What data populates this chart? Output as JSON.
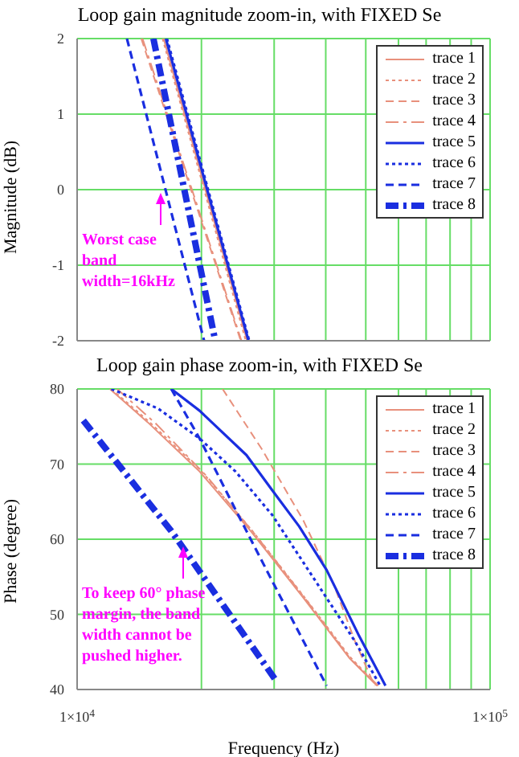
{
  "chart_data": [
    {
      "type": "line",
      "title": "Loop gain magnitude zoom-in, with FIXED Se",
      "ylabel": "Magnitude (dB)",
      "log": "x",
      "grid": true,
      "legend": "top right",
      "tick_labels": "y",
      "marker": "none",
      "xlim": [
        10000,
        100000
      ],
      "xticks": [
        {
          "value": 10000,
          "label": null
        },
        {
          "value": 20000,
          "label": null
        },
        {
          "value": 30000,
          "label": null
        },
        {
          "value": 40000,
          "label": null
        },
        {
          "value": 50000,
          "label": null
        },
        {
          "value": 60000,
          "label": null
        },
        {
          "value": 70000,
          "label": null
        },
        {
          "value": 80000,
          "label": null
        },
        {
          "value": 90000,
          "label": null
        },
        {
          "value": 100000,
          "label": null
        }
      ],
      "ylim": [
        -2,
        2
      ],
      "yticks": [
        -2,
        -1,
        0,
        1,
        2
      ],
      "annotations": [
        {
          "text": "Worst case band width=16kHz",
          "x": 16000,
          "y": 0
        }
      ],
      "series": [
        {
          "name": "trace 1",
          "color": "#e8907c",
          "line_style": "solid",
          "x": [
            16200,
            25800
          ],
          "values": [
            2,
            -2
          ]
        },
        {
          "name": "trace 2",
          "color": "#e8907c",
          "line_style": "dotted",
          "x": [
            16100,
            25600
          ],
          "values": [
            2,
            -2
          ]
        },
        {
          "name": "trace 3",
          "color": "#e8907c",
          "line_style": "dashed",
          "x": [
            14300,
            24900
          ],
          "values": [
            2,
            -2
          ]
        },
        {
          "name": "trace 4",
          "color": "#e8907c",
          "line_style": "dashdot",
          "x": [
            14400,
            25000
          ],
          "values": [
            2,
            -2
          ]
        },
        {
          "name": "trace 5",
          "color": "#1a2ee0",
          "line_style": "solid",
          "x": [
            16400,
            26000
          ],
          "values": [
            2,
            -2
          ]
        },
        {
          "name": "trace 6",
          "color": "#1a2ee0",
          "line_style": "dotted",
          "x": [
            16500,
            26100
          ],
          "values": [
            2,
            -2
          ]
        },
        {
          "name": "trace 7",
          "color": "#1a2ee0",
          "line_style": "dashed",
          "x": [
            13200,
            20300
          ],
          "values": [
            2,
            -2
          ]
        },
        {
          "name": "trace 8",
          "color": "#1a2ee0",
          "line_style": "dashdot",
          "x": [
            15300,
            21600
          ],
          "values": [
            2,
            -2
          ]
        }
      ]
    },
    {
      "type": "line",
      "title": "Loop gain phase zoom-in, with FIXED Se",
      "xlabel": "Frequency (Hz)",
      "ylabel": "Phase (degree)",
      "log": "x",
      "grid": true,
      "legend": "top right",
      "marker": "none",
      "xlim": [
        10000,
        100000
      ],
      "xticks": [
        {
          "value": 10000,
          "label": "1×10$^{4}$"
        },
        {
          "value": 20000,
          "label": null
        },
        {
          "value": 30000,
          "label": null
        },
        {
          "value": 40000,
          "label": null
        },
        {
          "value": 50000,
          "label": null
        },
        {
          "value": 60000,
          "label": null
        },
        {
          "value": 70000,
          "label": null
        },
        {
          "value": 80000,
          "label": null
        },
        {
          "value": 90000,
          "label": null
        },
        {
          "value": 100000,
          "label": "1×10$^{5}$"
        }
      ],
      "ylim": [
        40,
        80
      ],
      "yticks": [
        40,
        50,
        60,
        70,
        80
      ],
      "annotations": [
        {
          "text": "To keep 60° phase margin, the band width cannot be pushed higher.",
          "x": 18000,
          "y": 59.5
        }
      ],
      "series": [
        {
          "name": "trace 1",
          "color": "#e8907c",
          "line_style": "solid",
          "x": [
            12000,
            14800,
            19800,
            26400,
            35300,
            45600,
            53200
          ],
          "values": [
            80,
            75.6,
            69,
            61,
            52.2,
            44.2,
            40.5
          ]
        },
        {
          "name": "trace 2",
          "color": "#e8907c",
          "line_style": "dotted",
          "x": [
            12100,
            14900,
            19900,
            26500,
            35400,
            45700,
            53400
          ],
          "values": [
            80,
            75.7,
            69.2,
            61.2,
            52.4,
            44.4,
            40.5
          ]
        },
        {
          "name": "trace 3",
          "color": "#e8907c",
          "line_style": "dashed",
          "x": [
            22500,
            28000,
            35300,
            42000,
            47100,
            52500
          ],
          "values": [
            80,
            72,
            62.5,
            53.7,
            46.4,
            40.5
          ]
        },
        {
          "name": "trace 4",
          "color": "#e8907c",
          "line_style": "dashdot",
          "x": [
            12500,
            15500,
            20500,
            27000,
            36000,
            46000,
            53600
          ],
          "values": [
            80,
            75.4,
            68.5,
            60.6,
            51.8,
            44,
            40.5
          ]
        },
        {
          "name": "trace 5",
          "color": "#1a2ee0",
          "line_style": "solid",
          "x": [
            16900,
            19800,
            25700,
            29700,
            34500,
            40200,
            48200,
            55800
          ],
          "values": [
            80,
            77.1,
            71.2,
            66.5,
            61.7,
            55.9,
            47.1,
            40.5
          ]
        },
        {
          "name": "trace 6",
          "color": "#1a2ee0",
          "line_style": "dotted",
          "x": [
            12100,
            15700,
            19800,
            24200,
            29700,
            37100,
            47100,
            54200
          ],
          "values": [
            80,
            77.4,
            73.4,
            69,
            63.2,
            55.1,
            46.4,
            40.5
          ]
        },
        {
          "name": "trace 7",
          "color": "#1a2ee0",
          "line_style": "dashed",
          "x": [
            16900,
            19800,
            24200,
            29700,
            40200
          ],
          "values": [
            80,
            73.4,
            63.9,
            54.4,
            40.5
          ]
        },
        {
          "name": "trace 8",
          "color": "#1a2ee0",
          "line_style": "dashdot",
          "x": [
            10350,
            16900,
            30300
          ],
          "values": [
            75.8,
            61.1,
            41.2
          ]
        }
      ]
    }
  ]
}
